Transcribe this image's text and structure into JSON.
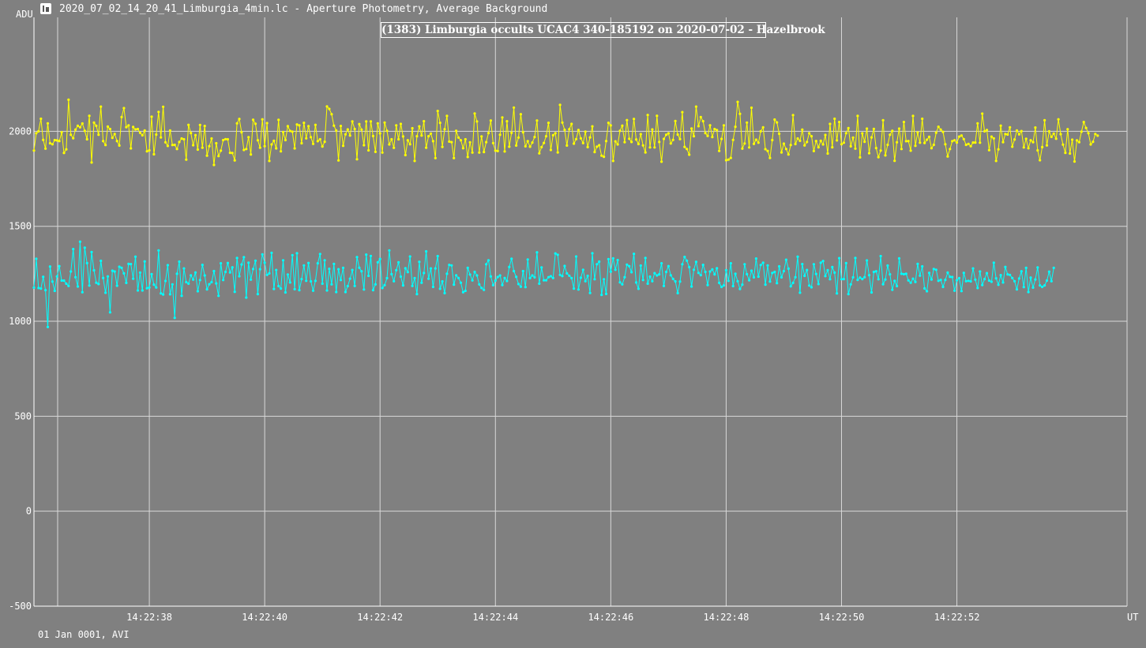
{
  "window": {
    "title": "2020_07_02_14_20_41_Limburgia_4min.lc - Aperture Photometry, Average Background",
    "icon": "lightcurve-app-icon"
  },
  "footer": {
    "text": "01 Jan 0001, AVI"
  },
  "colors": {
    "background": "#808080",
    "grid": "#d8d8d8",
    "axis": "#ffffff",
    "target": "#00ffff",
    "comparison": "#ffff00"
  },
  "chart_data": {
    "type": "line",
    "title": "(1383) Limburgia occults UCAC4 340-185192 on 2020-07-02 - Hazelbrook",
    "ylabel": "ADU",
    "xlabel": "UT",
    "ylim": [
      -500,
      2600
    ],
    "yticks": [
      -500,
      0,
      500,
      1000,
      1500,
      2000
    ],
    "xlim": [
      "14:22:36.00",
      "14:22:54.95"
    ],
    "xticks": [
      "14:22:38",
      "14:22:40",
      "14:22:42",
      "14:22:44",
      "14:22:46",
      "14:22:48",
      "14:22:50",
      "14:22:52"
    ],
    "grid": true,
    "series": [
      {
        "color": "#ffff00",
        "x_start": "14:22:36.00",
        "x_step_s": 0.04,
        "values": [
          1899,
          1990,
          2000,
          2066,
          1955,
          1909,
          2042,
          1937,
          1932,
          1954,
          1952,
          1949,
          1995,
          1886,
          1905,
          2166,
          1982,
          1964,
          2009,
          2029,
          2021,
          2041,
          2003,
          1958,
          2082,
          1836,
          2046,
          2029,
          1982,
          2130,
          1949,
          1928,
          2025,
          2012,
          1966,
          1986,
          1949,
          1925,
          2075,
          2122,
          2022,
          2031,
          1910,
          2023,
          2010,
          2012,
          1992,
          1979,
          2004,
          1895,
          1900,
          2077,
          1879,
          1983,
          2102,
          1968,
          2129,
          1942,
          1923,
          2004,
          1928,
          1929,
          1907,
          1944,
          1962,
          1958,
          1851,
          2034,
          1991,
          1927,
          1980,
          1904,
          2033,
          1914,
          2028,
          1872,
          1922,
          1962,
          1823,
          1937,
          1870,
          1898,
          1954,
          1959,
          1958,
          1887,
          1886,
          1847,
          2042,
          2065,
          1995,
          1902,
          1907,
          1969,
          1878,
          2061,
          2040,
          1953,
          1914,
          2063,
          1922,
          2043,
          1844,
          1931,
          1950,
          1910,
          2060,
          1895,
          1996,
          1954,
          2027,
          2002,
          1998,
          1910,
          2036,
          2031,
          1937,
          2045,
          1963,
          2027,
          1969,
          1934,
          2034,
          1948,
          1958,
          1920,
          1945,
          2131,
          2118,
          2090,
          2030,
          2004,
          1847,
          2028,
          1924,
          1984,
          2010,
          1978,
          2052,
          2012,
          1853,
          2038,
          2009,
          1927,
          2052,
          1900,
          2052,
          1975,
          1892,
          2042,
          1989,
          1888,
          2046,
          2003,
          1931,
          1958,
          1913,
          2031,
          1958,
          2039,
          1973,
          1875,
          1953,
          1932,
          2016,
          1844,
          1974,
          2026,
          1978,
          2053,
          1914,
          1974,
          1988,
          1948,
          1859,
          2107,
          2045,
          1918,
          2011,
          2081,
          1946,
          1943,
          1859,
          2003,
          1967,
          1953,
          1911,
          1958,
          1865,
          1942,
          1888,
          2094,
          2052,
          1888,
          1973,
          1891,
          1943,
          1991,
          2057,
          1938,
          1898,
          1896,
          1982,
          2073,
          1894,
          2053,
          1919,
          1992,
          2125,
          1925,
          1967,
          2090,
          1995,
          1921,
          1948,
          1919,
          1941,
          1970,
          2057,
          1884,
          1917,
          1939,
          1974,
          2045,
          1902,
          1979,
          1990,
          1889,
          2139,
          2046,
          2008,
          1925,
          2011,
          2039,
          1935,
          1959,
          2007,
          1963,
          1938,
          1998,
          1917,
          1968,
          2026,
          1891,
          1919,
          1927,
          1872,
          1866,
          1949,
          2045,
          2031,
          1844,
          1947,
          1931,
          2003,
          2030,
          1943,
          2059,
          1961,
          1944,
          2065,
          1957,
          1933,
          1985,
          1926,
          1889,
          2086,
          1915,
          2010,
          1915,
          2082,
          1944,
          1840,
          1960,
          1982,
          1989,
          1936,
          1955,
          2054,
          1983,
          1959,
          2101,
          1918,
          1907,
          1877,
          2015,
          1974,
          2130,
          2027,
          2075,
          2053,
          1991,
          1976,
          2032,
          1970,
          2012,
          2006,
          1897,
          1960,
          2031,
          1848,
          1851,
          1860,
          1955,
          2024,
          2155,
          2092,
          1909,
          1936,
          2046,
          1915,
          2124,
          1934,
          1956,
          1940,
          2000,
          2021,
          1906,
          1897,
          1860,
          1954,
          2062,
          2047,
          1987,
          1889,
          1935,
          1907,
          1878,
          1928,
          2085,
          1933,
          1962,
          1950,
          2009,
          1926,
          1944,
          1990,
          1974,
          1896,
          1949,
          1916,
          1950,
          1931,
          1981,
          1883,
          2039,
          1916,
          2066,
          1952,
          2049,
          1932,
          1940,
          1990,
          2017,
          1921,
          1967,
          1909,
          2081,
          1863,
          1989,
          1945,
          2014,
          1885,
          1968,
          2013,
          1912,
          1864,
          1899,
          2058,
          1873,
          1929,
          1982,
          2003,
          1845,
          1942,
          2014,
          1907,
          2049,
          1948,
          1949,
          1898,
          2081,
          1924,
          1994,
          1940,
          2066,
          1939,
          1956,
          1971,
          1911,
          1929,
          1993,
          2024,
          2009,
          1997,
          1932,
          1868,
          1907,
          1948,
          1953,
          1941,
          1972,
          1978,
          1959,
          1929,
          1934,
          1922,
          1941,
          1941,
          2042,
          1940,
          2093,
          2000,
          2007,
          1901,
          1972,
          1963,
          1844,
          1905,
          2030,
          1943,
          1986,
          1983,
          2021,
          1919,
          1957,
          2004,
          1984,
          2001,
          1915,
          1961,
          1911,
          1953,
          1943,
          2020,
          1900,
          1848,
          1917,
          2058,
          1926,
          2000,
          1971,
          1988,
          1961,
          2063,
          1985,
          1930,
          1887,
          2011,
          1883,
          1956,
          1841,
          1952,
          1943,
          1998,
          2049,
          2018,
          1990,
          1931,
          1945,
          1986,
          1977
        ]
      },
      {
        "color": "#00ffff",
        "x_start": "14:22:36.00",
        "x_step_s": 0.04,
        "values": [
          1177,
          1329,
          1175,
          1172,
          1234,
          1164,
          970,
          1288,
          1209,
          1160,
          1236,
          1290,
          1214,
          1214,
          1198,
          1186,
          1262,
          1380,
          1232,
          1183,
          1419,
          1153,
          1387,
          1306,
          1188,
          1364,
          1268,
          1203,
          1196,
          1318,
          1228,
          1150,
          1236,
          1047,
          1266,
          1262,
          1187,
          1287,
          1281,
          1252,
          1202,
          1302,
          1301,
          1224,
          1340,
          1162,
          1256,
          1162,
          1315,
          1174,
          1178,
          1248,
          1193,
          1178,
          1373,
          1147,
          1141,
          1212,
          1295,
          1142,
          1194,
          1018,
          1250,
          1314,
          1134,
          1278,
          1206,
          1198,
          1242,
          1219,
          1257,
          1158,
          1217,
          1297,
          1241,
          1168,
          1195,
          1206,
          1264,
          1199,
          1134,
          1305,
          1217,
          1260,
          1307,
          1257,
          1284,
          1155,
          1333,
          1237,
          1299,
          1337,
          1125,
          1308,
          1219,
          1275,
          1319,
          1143,
          1274,
          1352,
          1308,
          1244,
          1252,
          1360,
          1170,
          1270,
          1185,
          1172,
          1321,
          1152,
          1246,
          1204,
          1348,
          1169,
          1358,
          1164,
          1222,
          1294,
          1213,
          1307,
          1210,
          1161,
          1213,
          1305,
          1354,
          1198,
          1321,
          1162,
          1276,
          1194,
          1302,
          1154,
          1274,
          1217,
          1281,
          1154,
          1185,
          1224,
          1270,
          1186,
          1338,
          1282,
          1263,
          1167,
          1351,
          1239,
          1344,
          1164,
          1194,
          1310,
          1328,
          1175,
          1190,
          1227,
          1373,
          1248,
          1211,
          1269,
          1310,
          1235,
          1189,
          1279,
          1259,
          1341,
          1186,
          1227,
          1143,
          1313,
          1203,
          1254,
          1368,
          1224,
          1278,
          1181,
          1278,
          1343,
          1171,
          1210,
          1148,
          1250,
          1297,
          1294,
          1193,
          1242,
          1228,
          1203,
          1153,
          1160,
          1281,
          1246,
          1215,
          1260,
          1241,
          1194,
          1175,
          1165,
          1300,
          1321,
          1236,
          1190,
          1214,
          1233,
          1241,
          1191,
          1228,
          1212,
          1286,
          1329,
          1264,
          1234,
          1196,
          1182,
          1264,
          1180,
          1325,
          1227,
          1241,
          1231,
          1363,
          1198,
          1283,
          1216,
          1216,
          1232,
          1237,
          1228,
          1357,
          1350,
          1244,
          1238,
          1291,
          1252,
          1240,
          1227,
          1172,
          1341,
          1167,
          1229,
          1271,
          1211,
          1239,
          1149,
          1358,
          1221,
          1300,
          1314,
          1139,
          1221,
          1144,
          1327,
          1261,
          1331,
          1271,
          1322,
          1205,
          1194,
          1232,
          1298,
          1290,
          1258,
          1355,
          1204,
          1171,
          1293,
          1217,
          1333,
          1198,
          1235,
          1211,
          1253,
          1241,
          1247,
          1305,
          1186,
          1260,
          1290,
          1242,
          1223,
          1210,
          1148,
          1209,
          1300,
          1339,
          1319,
          1285,
          1183,
          1271,
          1313,
          1255,
          1243,
          1297,
          1260,
          1191,
          1262,
          1273,
          1247,
          1279,
          1202,
          1181,
          1189,
          1269,
          1213,
          1305,
          1185,
          1250,
          1211,
          1170,
          1193,
          1300,
          1248,
          1216,
          1266,
          1231,
          1330,
          1235,
          1296,
          1308,
          1193,
          1294,
          1209,
          1254,
          1260,
          1201,
          1289,
          1231,
          1264,
          1324,
          1277,
          1184,
          1202,
          1232,
          1340,
          1150,
          1301,
          1239,
          1270,
          1188,
          1179,
          1300,
          1249,
          1196,
          1308,
          1317,
          1238,
          1269,
          1221,
          1285,
          1256,
          1147,
          1332,
          1221,
          1222,
          1306,
          1143,
          1194,
          1231,
          1333,
          1218,
          1230,
          1222,
          1232,
          1320,
          1243,
          1152,
          1260,
          1263,
          1221,
          1343,
          1195,
          1220,
          1293,
          1247,
          1166,
          1213,
          1185,
          1331,
          1250,
          1248,
          1250,
          1215,
          1203,
          1224,
          1207,
          1302,
          1240,
          1289,
          1173,
          1158,
          1255,
          1220,
          1275,
          1271,
          1213,
          1218,
          1181,
          1218,
          1256,
          1234,
          1233,
          1161,
          1216,
          1227,
          1159,
          1255,
          1211,
          1213,
          1210,
          1278,
          1219,
          1175,
          1262,
          1191,
          1222,
          1253,
          1214,
          1208,
          1308,
          1226,
          1192,
          1243,
          1204,
          1286,
          1247,
          1244,
          1228,
          1211,
          1168,
          1225,
          1263,
          1180,
          1281,
          1154,
          1230,
          1177,
          1220,
          1283,
          1189,
          1181,
          1189,
          1214,
          1261,
          1211,
          1281
        ]
      }
    ]
  }
}
